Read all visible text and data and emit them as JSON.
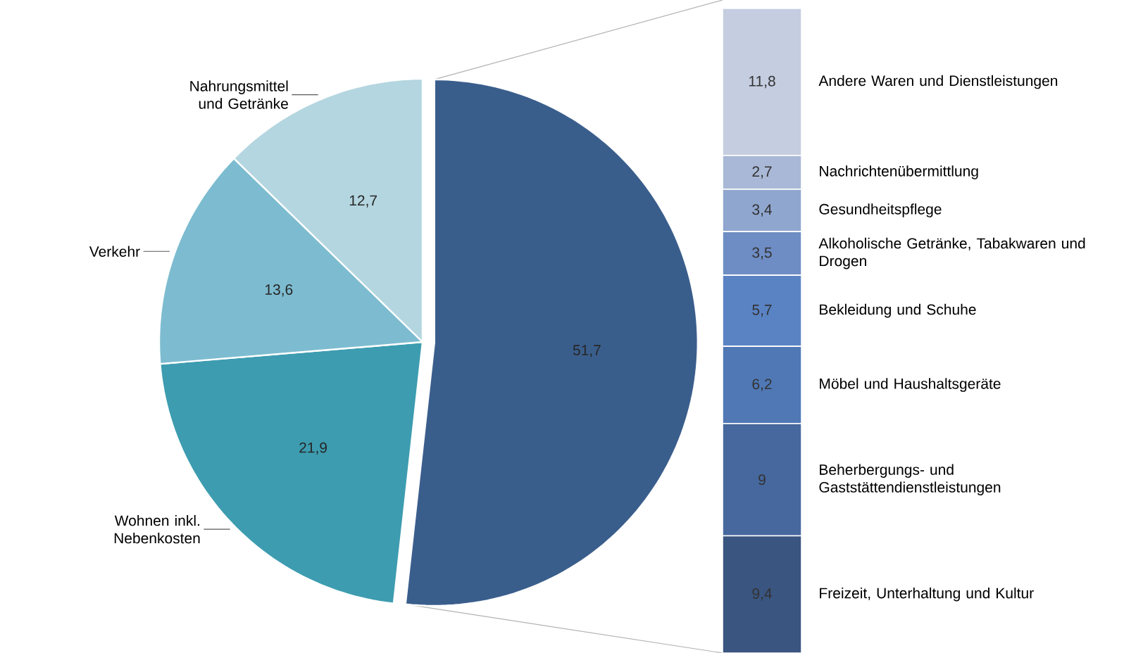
{
  "chart_data": [
    {
      "type": "pie",
      "categories": [
        null,
        "Wohnen inkl. Nebenkosten",
        "Verkehr",
        "Nahrungsmittel und Getränke"
      ],
      "values": [
        51.7,
        21.9,
        13.6,
        12.7
      ],
      "value_labels": [
        "51,7",
        "21,9",
        "13,6",
        "12,7"
      ],
      "colors": [
        "#3a5e8c",
        "#3d9cb0",
        "#7dbcd0",
        "#b4d6e0"
      ]
    },
    {
      "type": "bar",
      "stacked": true,
      "categories": [
        null
      ],
      "series": [
        {
          "name": "Freizeit, Unterhaltung und Kultur",
          "color": "#3a5580",
          "values": [
            9.4
          ],
          "value_labels": [
            "9,4"
          ]
        },
        {
          "name": "Beherbergungs- und Gaststättendienstleistungen",
          "color": "#46689e",
          "values": [
            9
          ],
          "value_labels": [
            "9"
          ]
        },
        {
          "name": "Möbel und Haushaltsgeräte",
          "color": "#4f78b5",
          "values": [
            6.2
          ],
          "value_labels": [
            "6,2"
          ]
        },
        {
          "name": "Bekleidung und Schuhe",
          "color": "#5a83c4",
          "values": [
            5.7
          ],
          "value_labels": [
            "5,7"
          ]
        },
        {
          "name": "Alkoholische Getränke, Tabakwaren und Drogen",
          "color": "#6e8dc4",
          "values": [
            3.5
          ],
          "value_labels": [
            "3,5"
          ]
        },
        {
          "name": "Gesundheitspflege",
          "color": "#8fa6cf",
          "values": [
            3.4
          ],
          "value_labels": [
            "3,4"
          ]
        },
        {
          "name": "Nachrichtenübermittlung",
          "color": "#a9b8d6",
          "values": [
            2.7
          ],
          "value_labels": [
            "2,7"
          ]
        },
        {
          "name": "Andere Waren und Dienstleistungen",
          "color": "#c5cde0",
          "values": [
            11.8
          ],
          "value_labels": [
            "11,8"
          ]
        }
      ]
    }
  ]
}
